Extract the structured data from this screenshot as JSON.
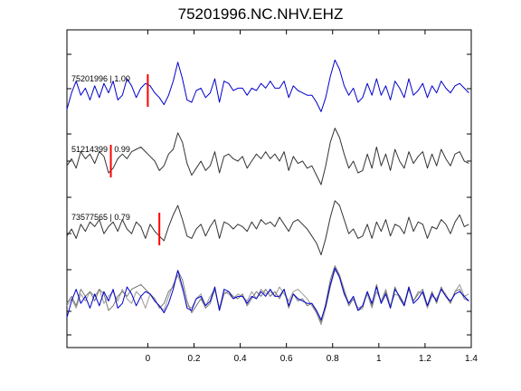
{
  "chart_data": {
    "type": "line",
    "title": "75201996.NC.NHV.EHZ",
    "xlabel": "",
    "ylabel": "",
    "xlim": [
      -0.35,
      1.4
    ],
    "xticks": [
      0,
      0.2,
      0.4,
      0.6,
      0.8,
      1,
      1.2,
      1.4
    ],
    "xtick_labels": [
      "0",
      "0.2",
      "0.4",
      "0.6",
      "0.8",
      "1",
      "1.2",
      "1.4"
    ],
    "grid": false,
    "traces": [
      {
        "label": "75201996 | 1.00",
        "color": "#0000cc",
        "pick_time": 0.0,
        "pick_color": "#ff0000",
        "x": [
          -0.35,
          -0.33,
          -0.31,
          -0.29,
          -0.27,
          -0.25,
          -0.23,
          -0.21,
          -0.19,
          -0.17,
          -0.15,
          -0.13,
          -0.11,
          -0.09,
          -0.07,
          -0.05,
          -0.03,
          -0.01,
          0.01,
          0.03,
          0.05,
          0.07,
          0.09,
          0.11,
          0.13,
          0.15,
          0.17,
          0.19,
          0.21,
          0.23,
          0.25,
          0.27,
          0.29,
          0.31,
          0.33,
          0.35,
          0.37,
          0.39,
          0.41,
          0.43,
          0.45,
          0.47,
          0.49,
          0.51,
          0.53,
          0.55,
          0.57,
          0.59,
          0.61,
          0.63,
          0.65,
          0.67,
          0.69,
          0.71,
          0.73,
          0.75,
          0.77,
          0.79,
          0.81,
          0.83,
          0.85,
          0.87,
          0.89,
          0.91,
          0.93,
          0.95,
          0.97,
          0.99,
          1.01,
          1.03,
          1.05,
          1.07,
          1.09,
          1.11,
          1.13,
          1.15,
          1.17,
          1.19,
          1.21,
          1.23,
          1.25,
          1.27,
          1.29,
          1.31,
          1.33,
          1.35,
          1.37,
          1.39
        ],
        "y": [
          -0.8,
          -0.1,
          0.4,
          -0.2,
          0.1,
          -0.4,
          0.2,
          -0.3,
          0.3,
          -0.1,
          0.4,
          -0.4,
          -0.2,
          0.5,
          0.2,
          -0.3,
          0.1,
          0.3,
          0.2,
          -0.1,
          -0.3,
          -0.6,
          -0.2,
          0.4,
          1.2,
          0.5,
          -0.4,
          -0.5,
          0.0,
          0.1,
          -0.3,
          -0.1,
          0.5,
          -0.5,
          0.4,
          0.3,
          0.0,
          0.1,
          0.1,
          -0.2,
          0.1,
          0.0,
          0.3,
          0.1,
          0.4,
          0.1,
          0.1,
          0.4,
          -0.3,
          0.2,
          0.0,
          -0.1,
          -0.2,
          -0.2,
          -0.5,
          -0.9,
          -0.3,
          0.6,
          1.3,
          0.9,
          0.2,
          -0.2,
          0.1,
          -0.5,
          -0.3,
          0.3,
          -0.2,
          0.5,
          -0.2,
          0.2,
          -0.4,
          0.4,
          0.1,
          -0.3,
          0.5,
          -0.2,
          0.0,
          0.3,
          -0.3,
          0.2,
          -0.1,
          0.4,
          0.1,
          -0.1,
          0.2,
          0.3,
          0.1,
          -0.1
        ]
      },
      {
        "label": "51214399 | 0.99",
        "color": "#333333",
        "pick_time": -0.16,
        "pick_color": "#ff0000",
        "x": [
          -0.35,
          -0.33,
          -0.31,
          -0.29,
          -0.27,
          -0.25,
          -0.23,
          -0.21,
          -0.19,
          -0.17,
          -0.15,
          -0.13,
          -0.11,
          -0.09,
          -0.07,
          -0.05,
          -0.03,
          -0.01,
          0.01,
          0.03,
          0.05,
          0.07,
          0.09,
          0.11,
          0.13,
          0.15,
          0.17,
          0.19,
          0.21,
          0.23,
          0.25,
          0.27,
          0.29,
          0.31,
          0.33,
          0.35,
          0.37,
          0.39,
          0.41,
          0.43,
          0.45,
          0.47,
          0.49,
          0.51,
          0.53,
          0.55,
          0.57,
          0.59,
          0.61,
          0.63,
          0.65,
          0.67,
          0.69,
          0.71,
          0.73,
          0.75,
          0.77,
          0.79,
          0.81,
          0.83,
          0.85,
          0.87,
          0.89,
          0.91,
          0.93,
          0.95,
          0.97,
          0.99,
          1.01,
          1.03,
          1.05,
          1.07,
          1.09,
          1.11,
          1.13,
          1.15,
          1.17,
          1.19,
          1.21,
          1.23,
          1.25,
          1.27,
          1.29,
          1.31,
          1.33,
          1.35,
          1.37,
          1.39
        ],
        "y": [
          -0.2,
          0.1,
          -0.3,
          0.4,
          0.1,
          0.3,
          -0.1,
          0.4,
          0.2,
          -0.5,
          -0.3,
          0.1,
          0.3,
          0.1,
          0.4,
          0.5,
          0.6,
          0.4,
          0.2,
          0.0,
          -0.4,
          -0.2,
          0.3,
          0.5,
          1.2,
          0.8,
          -0.1,
          -0.6,
          -0.3,
          0.0,
          -0.4,
          -0.2,
          0.4,
          -0.5,
          0.2,
          0.3,
          0.1,
          0.0,
          0.2,
          -0.3,
          0.0,
          0.3,
          0.1,
          0.4,
          0.1,
          0.3,
          0.0,
          0.4,
          -0.4,
          0.2,
          -0.1,
          0.0,
          -0.3,
          -0.2,
          -0.6,
          -1.0,
          -0.2,
          0.8,
          1.4,
          1.0,
          0.3,
          -0.3,
          0.0,
          -0.5,
          -0.4,
          0.3,
          -0.3,
          0.6,
          -0.2,
          0.3,
          -0.4,
          0.5,
          0.0,
          -0.3,
          0.4,
          -0.1,
          0.2,
          0.4,
          -0.3,
          0.3,
          -0.2,
          0.5,
          0.1,
          -0.2,
          0.3,
          0.4,
          0.0,
          -0.1
        ]
      },
      {
        "label": "73577565 | 0.79",
        "color": "#333333",
        "pick_time": 0.05,
        "pick_color": "#ff0000",
        "x": [
          -0.35,
          -0.33,
          -0.31,
          -0.29,
          -0.27,
          -0.25,
          -0.23,
          -0.21,
          -0.19,
          -0.17,
          -0.15,
          -0.13,
          -0.11,
          -0.09,
          -0.07,
          -0.05,
          -0.03,
          -0.01,
          0.01,
          0.03,
          0.05,
          0.07,
          0.09,
          0.11,
          0.13,
          0.15,
          0.17,
          0.19,
          0.21,
          0.23,
          0.25,
          0.27,
          0.29,
          0.31,
          0.33,
          0.35,
          0.37,
          0.39,
          0.41,
          0.43,
          0.45,
          0.47,
          0.49,
          0.51,
          0.53,
          0.55,
          0.57,
          0.59,
          0.61,
          0.63,
          0.65,
          0.67,
          0.69,
          0.71,
          0.73,
          0.75,
          0.77,
          0.79,
          0.81,
          0.83,
          0.85,
          0.87,
          0.89,
          0.91,
          0.93,
          0.95,
          0.97,
          0.99,
          1.01,
          1.03,
          1.05,
          1.07,
          1.09,
          1.11,
          1.13,
          1.15,
          1.17,
          1.19,
          1.21,
          1.23,
          1.25,
          1.27,
          1.29,
          1.31,
          1.33,
          1.35,
          1.37,
          1.39
        ],
        "y": [
          -0.3,
          0.0,
          -0.4,
          0.2,
          -0.1,
          0.3,
          0.1,
          0.4,
          -0.2,
          0.1,
          0.3,
          -0.1,
          0.4,
          0.0,
          -0.2,
          0.3,
          0.1,
          -0.4,
          0.2,
          -0.1,
          -0.3,
          -0.5,
          0.1,
          0.6,
          1.0,
          0.4,
          -0.3,
          -0.4,
          0.0,
          0.2,
          -0.3,
          0.1,
          0.4,
          -0.4,
          0.3,
          0.2,
          0.0,
          0.2,
          0.1,
          -0.1,
          0.3,
          0.0,
          0.4,
          0.2,
          0.3,
          0.1,
          0.5,
          0.2,
          -0.1,
          0.3,
          0.4,
          0.2,
          0.0,
          -0.3,
          -0.6,
          -1.1,
          -0.4,
          0.5,
          1.2,
          1.0,
          0.4,
          -0.2,
          0.0,
          -0.4,
          -0.3,
          0.2,
          -0.4,
          0.3,
          -0.1,
          0.4,
          -0.3,
          0.2,
          0.1,
          -0.2,
          0.5,
          -0.1,
          0.3,
          0.2,
          -0.4,
          0.1,
          0.0,
          0.4,
          0.2,
          -0.2,
          0.3,
          0.6,
          0.1,
          0.2
        ]
      }
    ],
    "overlay": {
      "description_series": [
        0,
        1,
        2
      ],
      "colors": [
        "#0000cc",
        "#777777",
        "#999999"
      ]
    }
  }
}
